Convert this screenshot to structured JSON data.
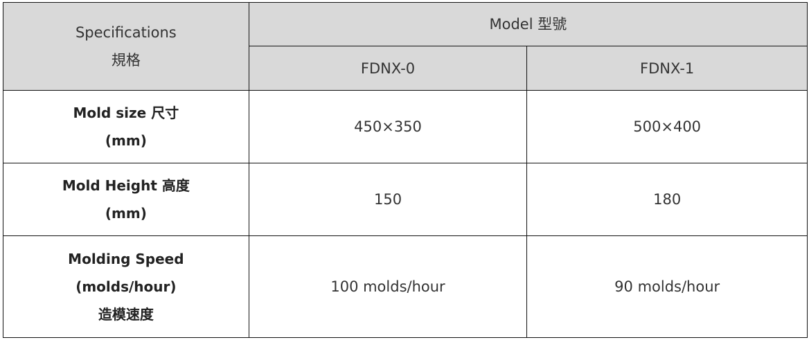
{
  "header": {
    "spec_en": "Specifications",
    "spec_zh": "規格",
    "model_group": "Model 型號",
    "models": [
      "FDNX-0",
      "FDNX-1"
    ]
  },
  "rows": [
    {
      "label_lines": [
        "Mold size 尺寸",
        "(mm)"
      ],
      "values": [
        "450×350",
        "500×400"
      ]
    },
    {
      "label_lines": [
        "Mold Height 高度",
        "(mm)"
      ],
      "values": [
        "150",
        "180"
      ]
    },
    {
      "label_lines": [
        "Molding Speed",
        "(molds/hour)",
        "造模速度"
      ],
      "values": [
        "100 molds/hour",
        "90 molds/hour"
      ]
    }
  ],
  "colors": {
    "header_bg": "#d9d9d9",
    "border": "#111111",
    "text": "#333333"
  }
}
